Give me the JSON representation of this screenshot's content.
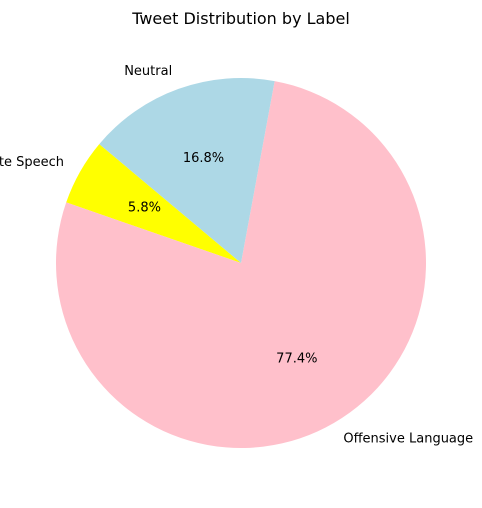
{
  "chart_data": {
    "type": "pie",
    "title": "Tweet Distribution by Label",
    "start_angle_deg": 140,
    "direction": "counterclockwise",
    "slices": [
      {
        "label": "Hate Speech",
        "value": 5.8,
        "pct_label": "5.8%",
        "color": "#ffff00"
      },
      {
        "label": "Offensive Language",
        "value": 77.4,
        "pct_label": "77.4%",
        "color": "#ffc0cb"
      },
      {
        "label": "Neutral",
        "value": 16.8,
        "pct_label": "16.8%",
        "color": "#add8e6"
      }
    ]
  }
}
